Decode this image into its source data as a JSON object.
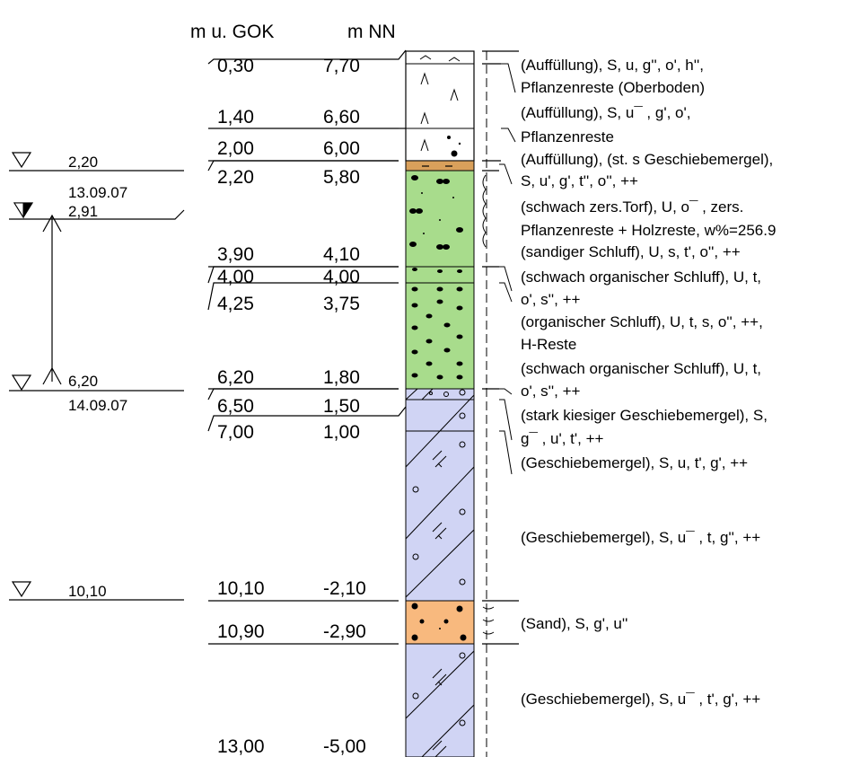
{
  "header": {
    "depth_label": "m u. GOK",
    "elev_label": "m NN"
  },
  "depths": [
    {
      "depth": "0,30",
      "elev": "7,70"
    },
    {
      "depth": "1,40",
      "elev": "6,60"
    },
    {
      "depth": "2,00",
      "elev": "6,00"
    },
    {
      "depth": "2,20",
      "elev": "5,80"
    },
    {
      "depth": "3,90",
      "elev": "4,10"
    },
    {
      "depth": "4,00",
      "elev": "4,00"
    },
    {
      "depth": "4,25",
      "elev": "3,75"
    },
    {
      "depth": "6,20",
      "elev": "1,80"
    },
    {
      "depth": "6,50",
      "elev": "1,50"
    },
    {
      "depth": "7,00",
      "elev": "1,00"
    },
    {
      "depth": "10,10",
      "elev": "-2,10"
    },
    {
      "depth": "10,90",
      "elev": "-2,90"
    },
    {
      "depth": "13,00",
      "elev": "-5,00"
    }
  ],
  "water_levels": [
    {
      "value": "2,20",
      "date": "13.09.07"
    },
    {
      "value": "2,91",
      "date": ""
    },
    {
      "value": "6,20",
      "date": "14.09.07"
    },
    {
      "value": "10,10",
      "date": ""
    }
  ],
  "descriptions": [
    [
      "(Auffüllung), S, u, g'', o', h'',",
      "Pflanzenreste (Oberboden)"
    ],
    [
      "(Auffüllung), S, u¯ , g', o',",
      "Pflanzenreste"
    ],
    [
      "(Auffüllung), (st. s Geschiebemergel),",
      "S, u', g', t'', o'', ++"
    ],
    [
      "(schwach zers.Torf), U, o¯ , zers.",
      "Pflanzenreste + Holzreste, w%=256.9"
    ],
    [
      "(sandiger Schluff), U, s, t', o'', ++"
    ],
    [
      "(schwach organischer Schluff), U, t,",
      "o', s'', ++"
    ],
    [
      "(organischer Schluff), U, t, s, o'', ++,",
      "H-Reste"
    ],
    [
      "(schwach organischer Schluff), U, t,",
      "o', s'', ++"
    ],
    [
      "(stark kiesiger Geschiebemergel), S,",
      "g¯ , u', t', ++"
    ],
    [
      "(Geschiebemergel), S, u, t', g', ++"
    ],
    [
      "(Geschiebemergel), S, u¯ , t, g'', ++"
    ],
    [
      "(Sand), S, g', u''"
    ],
    [
      "(Geschiebemergel), S, u¯ , t', g', ++"
    ]
  ],
  "colors": {
    "fill_topsoil": "#ffffff",
    "fill_brown": "#d9a05b",
    "fill_green": "#a8dc8c",
    "fill_blue": "#d0d4f4",
    "fill_sand": "#f8b97e"
  }
}
